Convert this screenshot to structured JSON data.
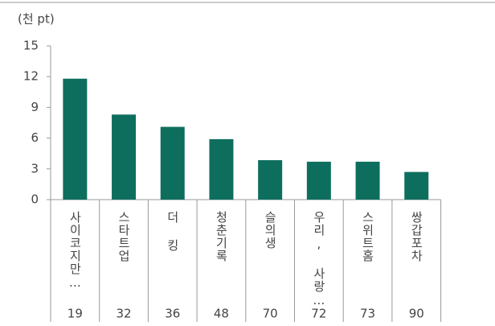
{
  "chart_data": {
    "type": "bar",
    "y_unit": "(천 pt)",
    "categories": [
      "사이코지만…",
      "스타트업",
      "더 킹",
      "청춘기록",
      "슬의생",
      "우리, 사랑…",
      "스위트홈",
      "쌍갑포차"
    ],
    "values": [
      11.8,
      8.3,
      7.1,
      5.9,
      3.85,
      3.7,
      3.7,
      2.7
    ],
    "x_secondary": [
      19,
      32,
      36,
      48,
      70,
      72,
      73,
      90
    ],
    "color": "#0e6e5e",
    "ylim": [
      0,
      15
    ],
    "yticks": [
      0,
      3,
      6,
      9,
      12,
      15
    ],
    "grid": false
  }
}
